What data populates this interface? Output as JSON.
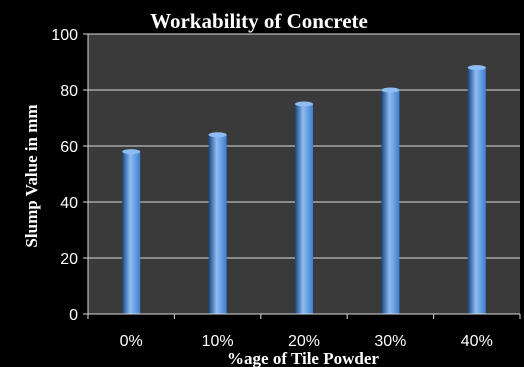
{
  "chart_data": {
    "type": "bar",
    "title": "Workability of Concrete",
    "xlabel": "%age of Tile Powder",
    "ylabel": "Slump Value in mm",
    "categories": [
      "0%",
      "10%",
      "20%",
      "30%",
      "40%"
    ],
    "values": [
      58,
      64,
      75,
      80,
      88
    ],
    "ylim": [
      0,
      100
    ],
    "yticks": [
      0,
      20,
      40,
      60,
      80,
      100
    ],
    "grid": true,
    "legend": "none",
    "colors": {
      "background": "#000000",
      "plot_area": "#3a3a3a",
      "bar": "#3d7fd0",
      "bar_highlight": "#8fbcf2",
      "bar_shadow": "#17457e",
      "grid": "#d9d9d9",
      "text": "#ffffff"
    }
  }
}
